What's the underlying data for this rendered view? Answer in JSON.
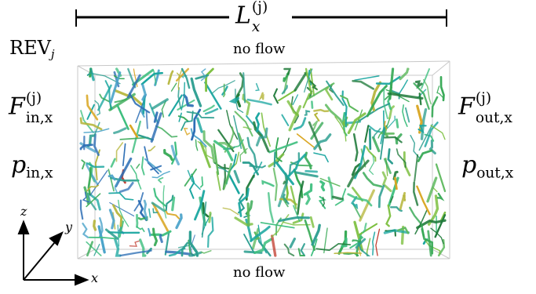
{
  "labels": {
    "rev": {
      "base": "REV",
      "sub": "j"
    },
    "length": {
      "base": "L",
      "sub": "x",
      "sup": "(j)"
    },
    "flux_in": {
      "base": "F",
      "sub": "in,x",
      "sup": "(j)"
    },
    "flux_out": {
      "base": "F",
      "sub": "out,x",
      "sup": "(j)"
    },
    "pressure_in": {
      "base": "p",
      "sub": "in,x"
    },
    "pressure_out": {
      "base": "p",
      "sub": "out,x"
    },
    "no_flow_top": "no flow",
    "no_flow_bottom": "no flow"
  },
  "axes": {
    "x": "x",
    "y": "y",
    "z": "z"
  },
  "colors": {
    "box_edge": "#c8c8c8",
    "fiber_palette": [
      "#2a9d8f",
      "#3fbf7f",
      "#34a853",
      "#1f7a3a",
      "#4aa3c9",
      "#2e6fb5",
      "#7cbf3f",
      "#b5b53a",
      "#d9a520",
      "#c0392b",
      "#1aa6a0",
      "#5cb85c"
    ]
  }
}
